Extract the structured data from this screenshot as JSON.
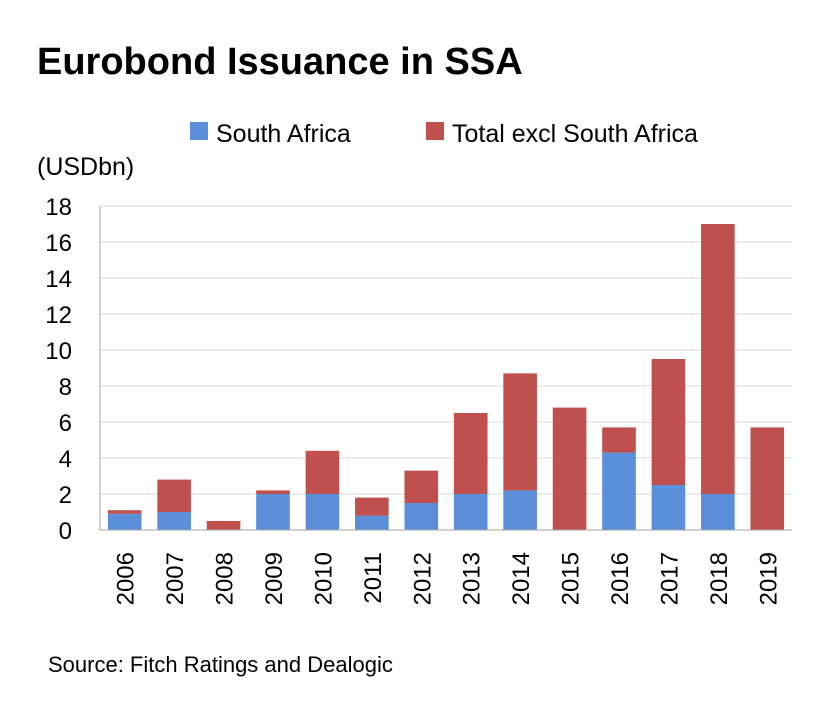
{
  "title": "Eurobond Issuance in SSA",
  "unit_label": "(USDbn)",
  "source": "Source: Fitch Ratings and Dealogic",
  "colors": {
    "south_africa": "#5B8FD9",
    "total_excl": "#C0504D",
    "grid": "#D9D9D9",
    "axis": "#A6A6A6"
  },
  "chart_data": {
    "type": "bar",
    "stacked": true,
    "categories": [
      "2006",
      "2007",
      "2008",
      "2009",
      "2010",
      "2011",
      "2012",
      "2013",
      "2014",
      "2015",
      "2016",
      "2017",
      "2018",
      "2019"
    ],
    "series": [
      {
        "name": "South Africa",
        "values": [
          0.9,
          1.0,
          0.0,
          2.0,
          2.0,
          0.8,
          1.5,
          2.0,
          2.2,
          0.0,
          4.3,
          2.5,
          2.0,
          0.0
        ]
      },
      {
        "name": "Total excl South Africa",
        "values": [
          0.2,
          1.8,
          0.5,
          0.2,
          2.4,
          1.0,
          1.8,
          4.5,
          6.5,
          6.8,
          1.4,
          7.0,
          15.0,
          5.7
        ]
      }
    ],
    "ylim": [
      0,
      18
    ],
    "yticks": [
      "0",
      "2",
      "4",
      "6",
      "8",
      "10",
      "12",
      "14",
      "16",
      "18"
    ],
    "grid": true,
    "legend_position": "top"
  }
}
